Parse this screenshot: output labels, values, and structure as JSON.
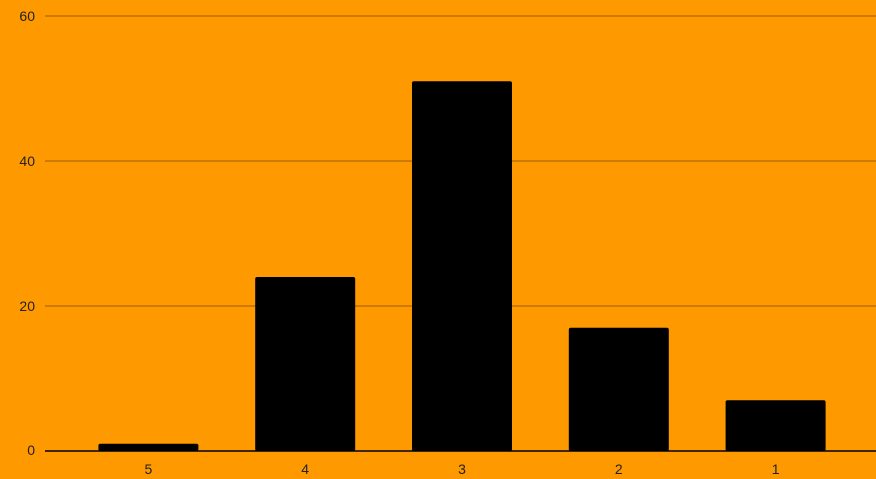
{
  "colors": {
    "background": "#ff9900",
    "bar": "#000000",
    "gridline": "#9b5a00",
    "axis": "#000000",
    "text": "#222222"
  },
  "chart_data": {
    "type": "bar",
    "title": "",
    "xlabel": "",
    "ylabel": "",
    "categories": [
      "5",
      "4",
      "3",
      "2",
      "1"
    ],
    "values": [
      1,
      24,
      51,
      17,
      7
    ],
    "ylim": [
      0,
      60
    ],
    "yticks": [
      0,
      20,
      40,
      60
    ],
    "grid": true,
    "legend": "none"
  }
}
